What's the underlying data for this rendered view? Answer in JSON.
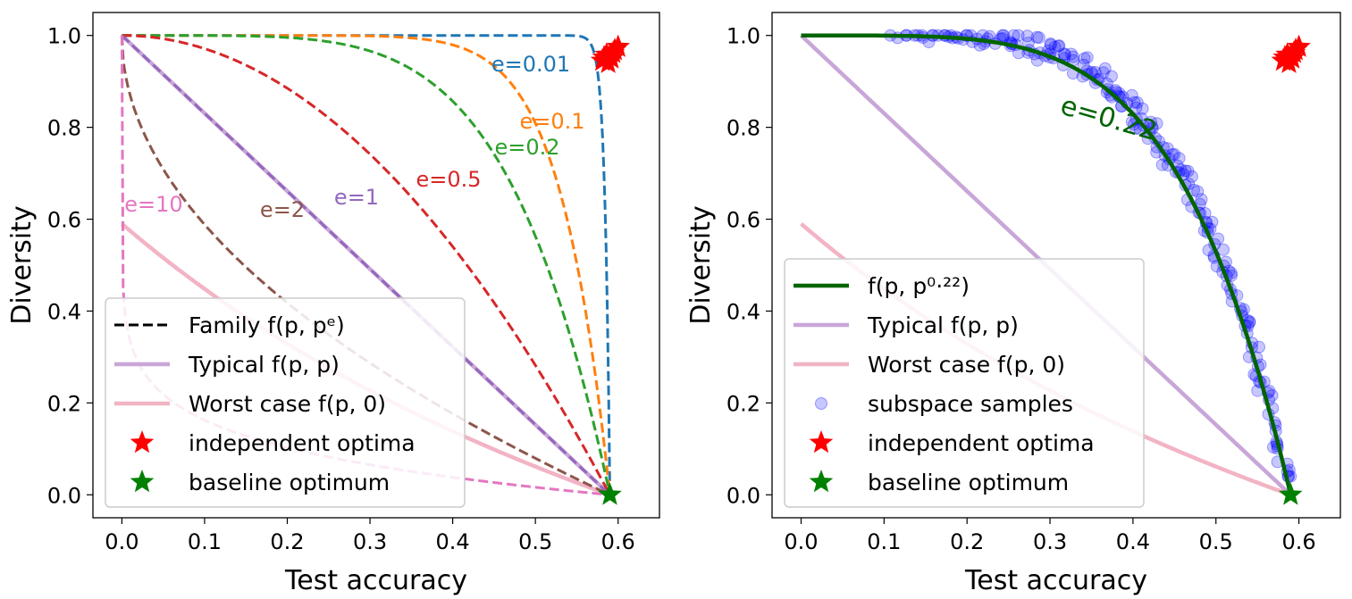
{
  "chart_data": [
    {
      "type": "line",
      "id": "left",
      "xlabel": "Test accuracy",
      "ylabel": "Diversity",
      "xlim": [
        -0.035,
        0.65
      ],
      "ylim": [
        -0.05,
        1.05
      ],
      "xticks": [
        "0.0",
        "0.1",
        "0.2",
        "0.3",
        "0.4",
        "0.5",
        "0.6"
      ],
      "yticks": [
        "0.0",
        "0.2",
        "0.4",
        "0.6",
        "0.8",
        "1.0"
      ],
      "p_star": 0.59,
      "worst_case_start": 0.59,
      "family": [
        {
          "e": 0.01,
          "label": "e=0.01",
          "color": "#1f77b4"
        },
        {
          "e": 0.1,
          "label": "e=0.1",
          "color": "#ff7f0e"
        },
        {
          "e": 0.2,
          "label": "e=0.2",
          "color": "#2ca02c"
        },
        {
          "e": 0.5,
          "label": "e=0.5",
          "color": "#d62728"
        },
        {
          "e": 1,
          "label": "e=1",
          "color": "#9467bd"
        },
        {
          "e": 2,
          "label": "e=2",
          "color": "#8c564b"
        },
        {
          "e": 10,
          "label": "e=10",
          "color": "#e377c2"
        }
      ],
      "typical_color": "#c9a6d8",
      "worst_color": "#f2b4c4",
      "independent_optima": [
        [
          0.581,
          0.945
        ],
        [
          0.586,
          0.958
        ],
        [
          0.592,
          0.95
        ],
        [
          0.596,
          0.968
        ],
        [
          0.6,
          0.975
        ],
        [
          0.588,
          0.94
        ],
        [
          0.594,
          0.962
        ],
        [
          0.583,
          0.952
        ]
      ],
      "baseline_optimum": [
        0.59,
        0.0
      ],
      "legend": {
        "location": "lower-left",
        "entries": [
          {
            "kind": "dash",
            "color": "#000000",
            "label": "Family f(p, pᵉ)"
          },
          {
            "kind": "line",
            "color": "#c9a6d8",
            "label": "Typical f(p, p)"
          },
          {
            "kind": "line",
            "color": "#f2b4c4",
            "label": "Worst case f(p, 0)"
          },
          {
            "kind": "star",
            "color": "#ff0000",
            "label": "independent optima"
          },
          {
            "kind": "star",
            "color": "#008000",
            "label": "baseline optimum"
          }
        ]
      }
    },
    {
      "type": "scatter",
      "id": "right",
      "xlabel": "Test accuracy",
      "ylabel": "Diversity",
      "xlim": [
        -0.035,
        0.65
      ],
      "ylim": [
        -0.05,
        1.05
      ],
      "xticks": [
        "0.0",
        "0.1",
        "0.2",
        "0.3",
        "0.4",
        "0.5",
        "0.6"
      ],
      "yticks": [
        "0.0",
        "0.2",
        "0.4",
        "0.6",
        "0.8",
        "1.0"
      ],
      "p_star": 0.59,
      "fit_e": 0.22,
      "fit_label": "e=0.22",
      "fit_color": "#006400",
      "typical_color": "#c9a6d8",
      "worst_color": "#f2b4c4",
      "sample_color": "#0000ff",
      "sample_count": 220,
      "independent_optima": [
        [
          0.581,
          0.945
        ],
        [
          0.586,
          0.958
        ],
        [
          0.592,
          0.95
        ],
        [
          0.596,
          0.968
        ],
        [
          0.6,
          0.975
        ],
        [
          0.588,
          0.94
        ],
        [
          0.594,
          0.962
        ],
        [
          0.583,
          0.952
        ]
      ],
      "baseline_optimum": [
        0.59,
        0.0
      ],
      "legend": {
        "location": "lower-left",
        "entries": [
          {
            "kind": "line",
            "color": "#006400",
            "label": "f(p, p⁰·²²)"
          },
          {
            "kind": "line",
            "color": "#c9a6d8",
            "label": "Typical f(p, p)"
          },
          {
            "kind": "line",
            "color": "#f2b4c4",
            "label": "Worst case f(p, 0)"
          },
          {
            "kind": "dot",
            "color": "#0000ff",
            "label": "subspace samples"
          },
          {
            "kind": "star",
            "color": "#ff0000",
            "label": "independent optima"
          },
          {
            "kind": "star",
            "color": "#008000",
            "label": "baseline optimum"
          }
        ]
      }
    }
  ]
}
